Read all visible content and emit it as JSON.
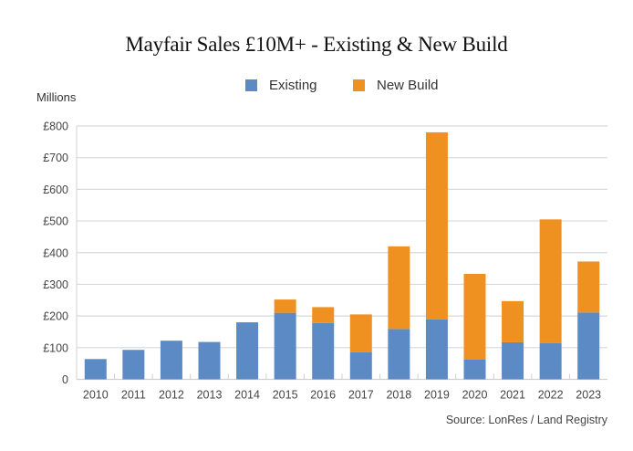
{
  "chart_data": {
    "type": "bar",
    "stacked": true,
    "title": "Mayfair Sales £10M+ - Existing & New Build",
    "ylabel": "Millions",
    "xlabel": "",
    "source": "Source: LonRes / Land Registry",
    "ylim": [
      0,
      800
    ],
    "yticks": [
      0,
      100,
      200,
      300,
      400,
      500,
      600,
      700,
      800
    ],
    "ytick_labels": [
      "0",
      "£100",
      "£200",
      "£300",
      "£400",
      "£500",
      "£600",
      "£700",
      "£800"
    ],
    "grid": true,
    "legend_position": "top-center",
    "categories": [
      "2010",
      "2011",
      "2012",
      "2013",
      "2014",
      "2015",
      "2016",
      "2017",
      "2018",
      "2019",
      "2020",
      "2021",
      "2022",
      "2023"
    ],
    "series": [
      {
        "name": "Existing",
        "color": "#5b8ac4",
        "values": [
          64,
          93,
          122,
          118,
          180,
          210,
          178,
          86,
          159,
          189,
          62,
          117,
          114,
          211
        ]
      },
      {
        "name": "New Build",
        "color": "#ee9120",
        "values": [
          0,
          0,
          0,
          0,
          0,
          42,
          50,
          119,
          261,
          591,
          271,
          130,
          391,
          161
        ]
      }
    ]
  }
}
